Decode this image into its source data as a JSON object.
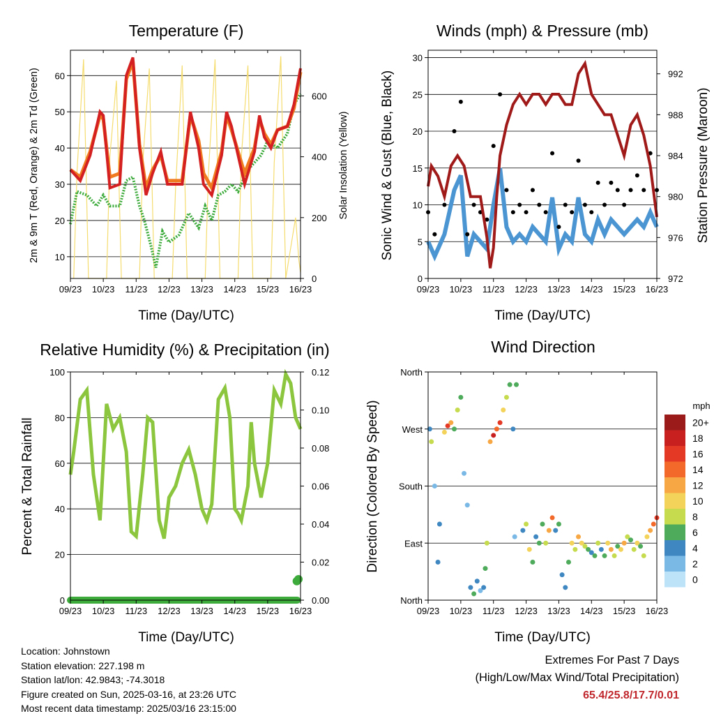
{
  "panels": {
    "temperature": {
      "title": "Temperature (F)",
      "ylabel_left": "2m & 9m T (Red, Orange) & 2m Td (Green)",
      "ylabel_right": "Solar Insolation (Yellow)",
      "xlabel": "Time (Day/UTC)"
    },
    "winds": {
      "title": "Winds (mph) & Pressure (mb)",
      "ylabel_left": "Sonic Wind & Gust (Blue, Black)",
      "ylabel_right": "Station Pressure (Maroon)",
      "xlabel": "Time (Day/UTC)"
    },
    "humidity": {
      "title": "Relative Humidity (%) & Precipitation (in)",
      "ylabel_left": "Percent & Total Rainfall",
      "xlabel": "Time (Day/UTC)"
    },
    "direction": {
      "title": "Wind Direction",
      "ylabel_left": "Direction (Colored By Speed)",
      "xlabel": "Time (Day/UTC)",
      "legend_title": "mph"
    }
  },
  "info": {
    "location": "Location: Johnstown",
    "elevation": "Station elevation: 227.198 m",
    "latlon": "Station lat/lon: 42.9843; -74.3018",
    "created": "Figure created on Sun, 2025-03-16, at 23:26 UTC",
    "latest": "Most recent data timestamp: 2025/03/16 23:15:00"
  },
  "extremes": {
    "line1": "Extremes For Past 7 Days",
    "line2": "(High/Low/Max Wind/Total Precipitation)",
    "values": "65.4/25.8/17.7/0.01"
  },
  "colors": {
    "temp_2m": "#d42020",
    "temp_9m": "#f07a20",
    "dewpoint": "#3cab3c",
    "solar": "#f5dc6e",
    "wind": "#4a95d2",
    "gust": "#000000",
    "pressure": "#a01a1a",
    "rh": "#8cc63f",
    "precip": "#3cab3c"
  },
  "chart_data": [
    {
      "type": "line",
      "title": "Temperature (F)",
      "xlabel": "Time (Day/UTC)",
      "x_ticks": [
        "09/23",
        "10/23",
        "11/23",
        "12/23",
        "13/23",
        "14/23",
        "15/23",
        "16/23"
      ],
      "ylim": [
        4,
        67
      ],
      "y_ticks": [
        10,
        20,
        30,
        40,
        50,
        60
      ],
      "y2lim": [
        0,
        750
      ],
      "y2_ticks": [
        0,
        200,
        400,
        600
      ],
      "series": [
        {
          "name": "2m T",
          "x": [
            9.0,
            9.3,
            9.6,
            9.9,
            10.0,
            10.2,
            10.5,
            10.7,
            10.9,
            11.1,
            11.3,
            11.5,
            11.75,
            11.95,
            12.1,
            12.4,
            12.65,
            12.9,
            13.05,
            13.3,
            13.6,
            13.75,
            13.9,
            14.1,
            14.3,
            14.6,
            14.75,
            14.9,
            15.1,
            15.3,
            15.6,
            15.8,
            16.0
          ],
          "y": [
            34,
            31,
            38,
            50,
            49,
            29,
            30,
            60,
            65,
            40,
            27,
            33,
            39,
            30,
            30,
            30,
            50,
            40,
            30,
            27,
            38,
            50,
            46,
            38,
            30,
            39,
            49,
            43,
            40,
            45,
            46,
            52,
            62
          ]
        },
        {
          "name": "9m T",
          "x": [
            9.0,
            9.3,
            9.6,
            9.9,
            10.0,
            10.2,
            10.5,
            10.7,
            10.9,
            11.1,
            11.3,
            11.5,
            11.75,
            11.95,
            12.1,
            12.4,
            12.65,
            12.9,
            13.05,
            13.3,
            13.6,
            13.75,
            13.9,
            14.1,
            14.3,
            14.6,
            14.75,
            14.9,
            15.1,
            15.3,
            15.6,
            15.8,
            16.0
          ],
          "y": [
            34,
            32,
            39,
            49,
            48,
            32,
            33,
            59,
            64,
            41,
            29,
            34,
            38,
            31,
            31,
            31,
            49,
            42,
            33,
            29,
            39,
            49,
            45,
            39,
            33,
            40,
            48,
            44,
            41,
            45,
            46,
            51,
            61
          ]
        },
        {
          "name": "2m Td",
          "x": [
            9.0,
            9.2,
            9.5,
            9.8,
            10.0,
            10.2,
            10.5,
            10.7,
            10.9,
            11.1,
            11.25,
            11.45,
            11.6,
            11.8,
            12.0,
            12.3,
            12.6,
            12.9,
            13.1,
            13.3,
            13.5,
            13.7,
            13.9,
            14.1,
            14.4,
            14.6,
            14.8,
            15.0,
            15.3,
            15.6,
            15.8,
            16.0
          ],
          "y": [
            19,
            28,
            27,
            24,
            27,
            24,
            24,
            31,
            32,
            24,
            20,
            13,
            7,
            17,
            14,
            16,
            22,
            18,
            24,
            20,
            27,
            28,
            30,
            28,
            34,
            36,
            38,
            42,
            40,
            44,
            52,
            55
          ]
        },
        {
          "name": "Solar Insolation",
          "axis": "y2",
          "x": [
            9.1,
            9.2,
            9.4,
            9.55,
            10.1,
            10.2,
            10.4,
            10.55,
            11.1,
            11.2,
            11.4,
            11.55,
            12.1,
            12.2,
            12.4,
            12.55,
            13.1,
            13.2,
            13.4,
            13.55,
            14.1,
            14.2,
            14.4,
            14.55,
            15.1,
            15.2,
            15.4,
            15.55,
            15.85,
            15.95,
            16.0
          ],
          "y": [
            0,
            350,
            720,
            0,
            0,
            400,
            650,
            0,
            0,
            380,
            690,
            0,
            0,
            300,
            700,
            0,
            0,
            350,
            720,
            0,
            0,
            400,
            700,
            0,
            0,
            380,
            730,
            0,
            200,
            60,
            20
          ]
        }
      ]
    },
    {
      "type": "line",
      "title": "Winds (mph) & Pressure (mb)",
      "xlabel": "Time (Day/UTC)",
      "x_ticks": [
        "09/23",
        "10/23",
        "11/23",
        "12/23",
        "13/23",
        "14/23",
        "15/23",
        "16/23"
      ],
      "ylim": [
        0,
        31
      ],
      "y_ticks": [
        0,
        5,
        10,
        15,
        20,
        25,
        30
      ],
      "y2lim": [
        972,
        994.3
      ],
      "y2_ticks": [
        972,
        976,
        980,
        984,
        988,
        992
      ],
      "series": [
        {
          "name": "Sonic Wind",
          "x": [
            9.0,
            9.2,
            9.5,
            9.8,
            10.0,
            10.2,
            10.4,
            10.6,
            10.8,
            11.0,
            11.2,
            11.4,
            11.6,
            11.8,
            12.0,
            12.2,
            12.4,
            12.6,
            12.8,
            13.0,
            13.2,
            13.4,
            13.6,
            13.8,
            14.0,
            14.2,
            14.4,
            14.6,
            14.8,
            15.0,
            15.2,
            15.4,
            15.6,
            15.8,
            16.0
          ],
          "y": [
            5,
            3,
            6,
            12,
            14,
            3,
            6,
            5,
            4,
            10,
            15,
            7,
            5,
            6,
            5,
            7,
            6,
            5,
            11,
            4,
            6,
            5,
            11,
            6,
            5,
            8,
            6,
            8,
            7,
            6,
            7,
            8,
            7,
            9,
            7
          ]
        },
        {
          "name": "Gust",
          "x": [
            9.0,
            9.2,
            9.5,
            9.8,
            10.0,
            10.2,
            10.4,
            10.6,
            10.8,
            11.0,
            11.2,
            11.4,
            11.6,
            11.8,
            12.0,
            12.2,
            12.4,
            12.6,
            12.8,
            13.0,
            13.2,
            13.4,
            13.6,
            13.8,
            14.0,
            14.2,
            14.4,
            14.6,
            14.8,
            15.0,
            15.2,
            15.4,
            15.6,
            15.8,
            16.0
          ],
          "y": [
            9,
            6,
            10,
            20,
            24,
            6,
            10,
            9,
            8,
            18,
            25,
            12,
            9,
            10,
            9,
            12,
            10,
            9,
            17,
            7,
            10,
            9,
            16,
            10,
            9,
            13,
            10,
            13,
            12,
            10,
            12,
            14,
            12,
            17,
            12
          ]
        },
        {
          "name": "Station Pressure",
          "axis": "y2",
          "x": [
            9.0,
            9.1,
            9.3,
            9.5,
            9.7,
            9.9,
            10.1,
            10.3,
            10.6,
            10.8,
            10.9,
            11.0,
            11.1,
            11.2,
            11.4,
            11.6,
            11.8,
            12.0,
            12.2,
            12.4,
            12.6,
            12.8,
            13.0,
            13.2,
            13.4,
            13.6,
            13.8,
            14.0,
            14.2,
            14.4,
            14.6,
            14.8,
            15.0,
            15.2,
            15.4,
            15.6,
            15.8,
            16.0
          ],
          "y": [
            981,
            983,
            982,
            980,
            983,
            984,
            983,
            980,
            980,
            976,
            973,
            975,
            980,
            984,
            987,
            989,
            990,
            989,
            990,
            990,
            989,
            990,
            990,
            989,
            989,
            992,
            993,
            990,
            989,
            988,
            988,
            986,
            984,
            987,
            988,
            986,
            983,
            978
          ]
        }
      ]
    },
    {
      "type": "line",
      "title": "Relative Humidity (%) & Precipitation (in)",
      "xlabel": "Time (Day/UTC)",
      "x_ticks": [
        "09/23",
        "10/23",
        "11/23",
        "12/23",
        "13/23",
        "14/23",
        "15/23",
        "16/23"
      ],
      "ylim": [
        0,
        100
      ],
      "y_ticks": [
        0,
        20,
        40,
        60,
        80,
        100
      ],
      "y2lim": [
        0,
        0.12
      ],
      "y2_ticks": [
        "0.00",
        "0.02",
        "0.04",
        "0.06",
        "0.08",
        "0.10",
        "0.12"
      ],
      "series": [
        {
          "name": "Relative Humidity",
          "x": [
            9.0,
            9.1,
            9.3,
            9.5,
            9.7,
            9.9,
            10.1,
            10.3,
            10.5,
            10.7,
            10.85,
            11.0,
            11.2,
            11.35,
            11.5,
            11.7,
            11.85,
            12.0,
            12.2,
            12.4,
            12.6,
            12.8,
            13.0,
            13.15,
            13.3,
            13.5,
            13.7,
            13.85,
            14.0,
            14.1,
            14.2,
            14.4,
            14.5,
            14.6,
            14.8,
            15.0,
            15.2,
            15.4,
            15.55,
            15.7,
            15.85,
            16.0
          ],
          "y": [
            55,
            65,
            88,
            92,
            55,
            35,
            86,
            75,
            80,
            65,
            30,
            28,
            55,
            80,
            78,
            35,
            27,
            45,
            50,
            60,
            66,
            55,
            40,
            35,
            42,
            88,
            93,
            80,
            40,
            38,
            35,
            50,
            78,
            60,
            45,
            60,
            92,
            86,
            99,
            95,
            80,
            75
          ]
        },
        {
          "name": "Total Precipitation",
          "axis": "y2",
          "x": [
            9.0,
            15.9,
            15.95,
            16.0
          ],
          "y": [
            0.0,
            0.0,
            0.01,
            0.011
          ]
        }
      ]
    },
    {
      "type": "scatter",
      "title": "Wind Direction",
      "xlabel": "Time (Day/UTC)",
      "x_ticks": [
        "09/23",
        "10/23",
        "11/23",
        "12/23",
        "13/23",
        "14/23",
        "15/23",
        "16/23"
      ],
      "y_ticks": [
        "North",
        "East",
        "South",
        "West",
        "North"
      ],
      "ylim": [
        0,
        360
      ],
      "colorbar": {
        "title": "mph",
        "labels": [
          "20+",
          "18",
          "16",
          "14",
          "12",
          "10",
          "8",
          "6",
          "4",
          "2",
          "0"
        ],
        "colors": [
          "#9b1b1b",
          "#c8201f",
          "#e43a25",
          "#f2692a",
          "#f7a743",
          "#f4d35a",
          "#c6db4e",
          "#4fab5c",
          "#3e87c1",
          "#7ab8e6",
          "#bde3f8"
        ]
      },
      "series": [
        {
          "name": "Direction",
          "x": [
            9.05,
            9.1,
            9.2,
            9.3,
            9.35,
            9.5,
            9.6,
            9.7,
            9.8,
            9.9,
            10.0,
            10.1,
            10.2,
            10.3,
            10.4,
            10.5,
            10.6,
            10.7,
            10.75,
            10.8,
            10.9,
            11.0,
            11.1,
            11.2,
            11.3,
            11.4,
            11.5,
            11.6,
            11.65,
            11.7,
            11.9,
            12.0,
            12.1,
            12.2,
            12.3,
            12.4,
            12.5,
            12.6,
            12.7,
            12.8,
            12.9,
            13.0,
            13.1,
            13.2,
            13.3,
            13.4,
            13.5,
            13.6,
            13.7,
            13.8,
            13.9,
            14.0,
            14.1,
            14.2,
            14.3,
            14.4,
            14.5,
            14.6,
            14.7,
            14.8,
            14.9,
            15.0,
            15.1,
            15.2,
            15.3,
            15.4,
            15.5,
            15.6,
            15.7,
            15.8,
            15.9,
            16.0
          ],
          "y": [
            270,
            250,
            180,
            60,
            120,
            265,
            275,
            280,
            270,
            300,
            320,
            200,
            150,
            20,
            10,
            30,
            15,
            20,
            50,
            90,
            250,
            260,
            270,
            280,
            300,
            320,
            340,
            270,
            100,
            340,
            110,
            120,
            80,
            60,
            100,
            90,
            120,
            90,
            110,
            130,
            110,
            120,
            40,
            20,
            60,
            90,
            80,
            100,
            90,
            85,
            80,
            75,
            70,
            90,
            80,
            70,
            90,
            80,
            70,
            85,
            80,
            90,
            100,
            95,
            80,
            90,
            85,
            70,
            100,
            110,
            120,
            130
          ],
          "speed": [
            4,
            8,
            2,
            3,
            3,
            10,
            16,
            12,
            6,
            8,
            6,
            2,
            2,
            4,
            6,
            4,
            2,
            4,
            6,
            8,
            12,
            18,
            14,
            16,
            10,
            8,
            6,
            4,
            2,
            6,
            4,
            8,
            10,
            6,
            4,
            6,
            6,
            8,
            12,
            14,
            4,
            6,
            4,
            4,
            6,
            10,
            8,
            12,
            10,
            8,
            6,
            4,
            6,
            8,
            4,
            6,
            10,
            12,
            8,
            6,
            10,
            12,
            8,
            6,
            8,
            10,
            6,
            8,
            10,
            12,
            14,
            16
          ]
        }
      ]
    }
  ]
}
